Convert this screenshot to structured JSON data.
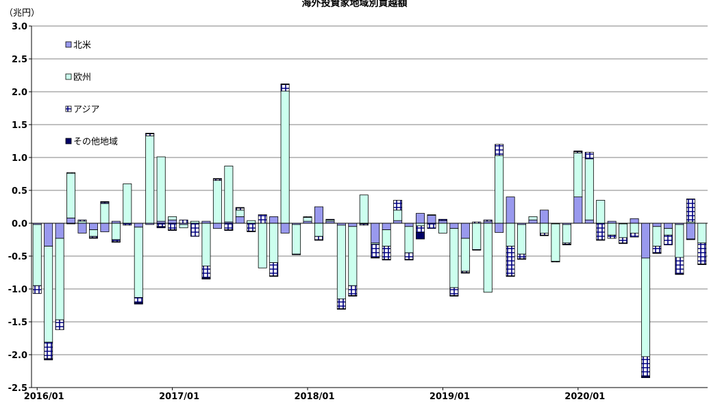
{
  "chart_data": {
    "type": "bar",
    "stacked": true,
    "title": "海外投資家地域別買越額",
    "ylabel": "（兆円）",
    "xlabel": "",
    "ylim": [
      -2.5,
      3.0
    ],
    "yticks": [
      "3.0",
      "2.5",
      "2.0",
      "1.5",
      "1.0",
      "0.5",
      "0.0",
      "-0.5",
      "-1.0",
      "-1.5",
      "-2.0",
      "-2.5"
    ],
    "ytick_values": [
      3.0,
      2.5,
      2.0,
      1.5,
      1.0,
      0.5,
      0.0,
      -0.5,
      -1.0,
      -1.5,
      -2.0,
      -2.5
    ],
    "xticks": [
      "2016/01",
      "2017/01",
      "2018/01",
      "2019/01",
      "2020/01"
    ],
    "xtick_index": [
      0,
      12,
      24,
      36,
      48
    ],
    "grid": "horizontal",
    "legend_position": "top-left",
    "x": [
      "2016/01",
      "2016/02",
      "2016/03",
      "2016/04",
      "2016/05",
      "2016/06",
      "2016/07",
      "2016/08",
      "2016/09",
      "2016/10",
      "2016/11",
      "2016/12",
      "2017/01",
      "2017/02",
      "2017/03",
      "2017/04",
      "2017/05",
      "2017/06",
      "2017/07",
      "2017/08",
      "2017/09",
      "2017/10",
      "2017/11",
      "2017/12",
      "2018/01",
      "2018/02",
      "2018/03",
      "2018/04",
      "2018/05",
      "2018/06",
      "2018/07",
      "2018/08",
      "2018/09",
      "2018/10",
      "2018/11",
      "2018/12",
      "2019/01",
      "2019/02",
      "2019/03",
      "2019/04",
      "2019/05",
      "2019/06",
      "2019/07",
      "2019/08",
      "2019/09",
      "2019/10",
      "2019/11",
      "2019/12",
      "2020/01",
      "2020/02",
      "2020/03",
      "2020/04",
      "2020/05",
      "2020/06",
      "2020/07",
      "2020/08",
      "2020/09",
      "2020/10",
      "2020/11",
      "2020/12"
    ],
    "series": [
      {
        "name": "北米",
        "color": "#9999ee",
        "pattern": "solid",
        "values": [
          -0.02,
          -0.35,
          -0.23,
          0.08,
          -0.15,
          -0.1,
          -0.13,
          0.03,
          0.0,
          -0.06,
          -0.02,
          0.03,
          0.05,
          -0.02,
          0.0,
          0.03,
          -0.08,
          0.02,
          0.1,
          0.0,
          0.0,
          0.1,
          -0.15,
          -0.02,
          0.03,
          0.25,
          0.03,
          -0.03,
          -0.05,
          -0.01,
          -0.3,
          -0.1,
          0.04,
          -0.05,
          0.15,
          0.12,
          0.04,
          -0.08,
          -0.23,
          0.0,
          0.03,
          -0.14,
          0.4,
          -0.02,
          0.05,
          0.2,
          -0.01,
          -0.02,
          0.4,
          0.05,
          0.0,
          0.03,
          -0.01,
          0.07,
          -0.53,
          -0.05,
          -0.08,
          -0.02,
          -0.24,
          0.0
        ]
      },
      {
        "name": "欧州",
        "color": "#ccffee",
        "pattern": "solid",
        "values": [
          -0.93,
          -1.46,
          -1.24,
          0.68,
          0.03,
          -0.1,
          0.3,
          -0.25,
          0.6,
          -1.07,
          1.33,
          0.98,
          0.05,
          -0.05,
          0.03,
          -0.65,
          0.65,
          0.85,
          0.1,
          0.04,
          -0.68,
          -0.6,
          2.01,
          -0.45,
          0.06,
          -0.2,
          0.02,
          -1.12,
          -0.9,
          0.43,
          -0.02,
          -0.25,
          0.16,
          -0.4,
          -0.04,
          0.01,
          -0.15,
          -0.9,
          -0.5,
          -0.4,
          -1.05,
          1.03,
          -0.35,
          -0.45,
          0.05,
          -0.15,
          -0.57,
          -0.28,
          0.67,
          0.93,
          0.35,
          -0.18,
          -0.21,
          -0.15,
          -1.5,
          -0.3,
          -0.1,
          -0.5,
          0.02,
          -0.3
        ]
      },
      {
        "name": "アジア",
        "color": "#ffffff",
        "pattern": "grid",
        "values": [
          -0.12,
          -0.25,
          -0.15,
          0.01,
          0.02,
          -0.02,
          0.02,
          -0.03,
          -0.03,
          -0.08,
          0.03,
          -0.05,
          -0.1,
          0.05,
          -0.2,
          -0.18,
          0.02,
          -0.1,
          0.03,
          -0.12,
          0.13,
          -0.2,
          0.1,
          0.0,
          0.01,
          -0.05,
          0.01,
          -0.15,
          -0.15,
          -0.02,
          -0.2,
          -0.2,
          0.15,
          -0.1,
          -0.1,
          -0.08,
          0.02,
          -0.12,
          -0.02,
          0.02,
          0.02,
          0.17,
          -0.45,
          -0.07,
          0.0,
          -0.03,
          -0.01,
          -0.02,
          0.02,
          0.1,
          -0.25,
          -0.05,
          -0.08,
          -0.06,
          -0.3,
          -0.1,
          -0.15,
          -0.25,
          0.35,
          -0.32
        ]
      },
      {
        "name": "その他地域",
        "color": "#000066",
        "pattern": "solid",
        "values": [
          0.0,
          -0.02,
          0.0,
          -0.01,
          0.0,
          -0.01,
          0.01,
          -0.01,
          0.0,
          -0.02,
          0.01,
          -0.02,
          -0.01,
          0.0,
          0.0,
          -0.02,
          0.01,
          -0.01,
          0.01,
          -0.01,
          0.0,
          -0.01,
          0.01,
          -0.01,
          0.0,
          -0.01,
          0.0,
          -0.01,
          -0.01,
          0.0,
          -0.01,
          -0.01,
          0.0,
          -0.01,
          -0.1,
          0.0,
          0.0,
          -0.01,
          -0.01,
          -0.01,
          0.0,
          0.0,
          -0.01,
          -0.01,
          0.0,
          -0.01,
          0.0,
          -0.01,
          0.01,
          0.0,
          -0.01,
          0.0,
          -0.01,
          0.0,
          -0.02,
          -0.01,
          0.0,
          -0.01,
          -0.01,
          -0.01
        ]
      }
    ]
  }
}
